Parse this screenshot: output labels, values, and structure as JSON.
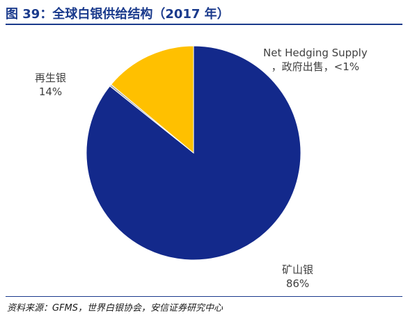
{
  "figure_title": "图 39：全球白银供给结构（2017 年）",
  "source_note": "资料来源：GFMS，世界白银协会，安信证券研究中心",
  "colors": {
    "title": "#1a3a8c",
    "mine": "#13298b",
    "recycled": "#ffc000",
    "hedge": "#a6a6a6"
  },
  "chart_data": {
    "type": "pie",
    "title": "",
    "slices": [
      {
        "name": "矿山银",
        "value": 86,
        "value_label": "86%",
        "color": "#13298b"
      },
      {
        "name": "Net Hedging Supply，政府出售",
        "value": 0.3,
        "value_label": "<1%",
        "color": "#a6a6a6"
      },
      {
        "name": "再生银",
        "value": 14,
        "value_label": "14%",
        "color": "#ffc000"
      }
    ],
    "labels": {
      "recycled": {
        "name": "再生银",
        "pct": "14%"
      },
      "hedge": {
        "line1": "Net Hedging Supply",
        "line2": "，政府出售，<1%"
      },
      "mine": {
        "name": "矿山银",
        "pct": "86%"
      }
    }
  }
}
